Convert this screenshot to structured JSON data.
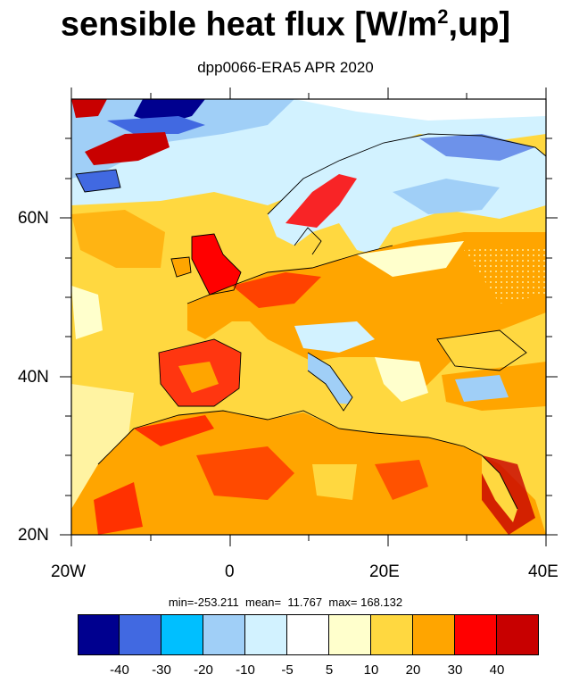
{
  "title": {
    "main": "sensible heat flux [W/m",
    "sup": "2",
    "tail": ",up]"
  },
  "subtitle": "dpp0066-ERA5  APR 2020",
  "stats": {
    "min": "min=-253.211",
    "mean": "mean=  11.767",
    "max": "max= 168.132"
  },
  "map": {
    "lon_ticks": [
      "20W",
      "0",
      "20E",
      "40E"
    ],
    "lat_ticks": [
      "20N",
      "40N",
      "60N"
    ],
    "lon_range": [
      -20,
      40
    ],
    "lat_range": [
      20,
      75
    ]
  },
  "colorbar": {
    "colors": [
      "#00008f",
      "#4169e1",
      "#00bfff",
      "#a0cff7",
      "#d2f2ff",
      "#ffffff",
      "#ffffcc",
      "#ffd840",
      "#ffa500",
      "#ff0000",
      "#c80000"
    ],
    "labels": [
      "-40",
      "-30",
      "-20",
      "-10",
      "-5",
      "5",
      "10",
      "20",
      "30",
      "40"
    ]
  }
}
